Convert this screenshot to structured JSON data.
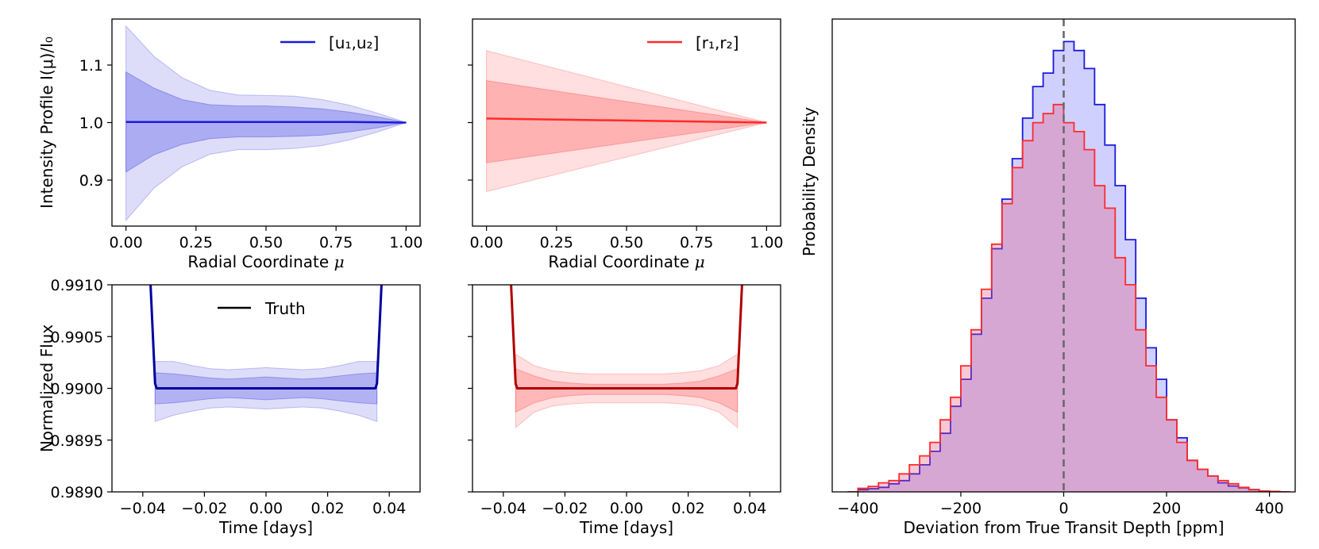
{
  "chart_data": [
    {
      "id": "p1",
      "type": "line",
      "xlabel_prefix": "Radial Coordinate ",
      "xlabel_symbol": "μ",
      "ylabel": "Intensity Profile I(μ)/I₀",
      "xlim": [
        -0.05,
        1.05
      ],
      "ylim": [
        0.82,
        1.18
      ],
      "xticks": [
        0,
        0.25,
        0.5,
        0.75,
        1.0
      ],
      "xtick_labels": [
        "0.00",
        "0.25",
        "0.50",
        "0.75",
        "1.00"
      ],
      "yticks": [
        0.9,
        1.0,
        1.1
      ],
      "ytick_labels": [
        "0.9",
        "1.0",
        "1.1"
      ],
      "legend": "[u₁,u₂]",
      "color": "#1a1adb",
      "x": [
        0,
        0.1,
        0.2,
        0.3,
        0.4,
        0.5,
        0.6,
        0.7,
        0.8,
        0.9,
        1.0
      ],
      "median": [
        1.001,
        1.001,
        1.001,
        1.001,
        1.001,
        1.001,
        1.001,
        1.001,
        1.001,
        1.0005,
        1.0
      ],
      "band1_hi": [
        1.088,
        1.06,
        1.04,
        1.031,
        1.029,
        1.029,
        1.027,
        1.024,
        1.018,
        1.01,
        1.0
      ],
      "band1_lo": [
        0.914,
        0.944,
        0.962,
        0.972,
        0.975,
        0.975,
        0.976,
        0.978,
        0.984,
        0.991,
        1.0
      ],
      "band2_hi": [
        1.168,
        1.115,
        1.078,
        1.056,
        1.048,
        1.047,
        1.046,
        1.04,
        1.03,
        1.016,
        1.0
      ],
      "band2_lo": [
        0.83,
        0.886,
        0.923,
        0.945,
        0.953,
        0.953,
        0.955,
        0.96,
        0.97,
        0.984,
        1.0
      ]
    },
    {
      "id": "p2",
      "type": "line",
      "xlabel_prefix": "Radial Coordinate ",
      "xlabel_symbol": "μ",
      "ylabel": "",
      "xlim": [
        -0.05,
        1.05
      ],
      "ylim": [
        0.82,
        1.18
      ],
      "xticks": [
        0,
        0.25,
        0.5,
        0.75,
        1.0
      ],
      "xtick_labels": [
        "0.00",
        "0.25",
        "0.50",
        "0.75",
        "1.00"
      ],
      "yticks": [
        0.9,
        1.0,
        1.1
      ],
      "ytick_labels": [
        "",
        "",
        ""
      ],
      "legend": "[r₁,r₂]",
      "color": "#ff2a2a",
      "x": [
        0,
        1.0
      ],
      "median": [
        1.007,
        1.0
      ],
      "band1_hi": [
        1.073,
        1.0
      ],
      "band1_lo": [
        0.93,
        1.0
      ],
      "band2_hi": [
        1.125,
        1.0
      ],
      "band2_lo": [
        0.88,
        1.0
      ]
    },
    {
      "id": "p3",
      "type": "line",
      "xlabel": "Time [days]",
      "ylabel": "Normalized Flux",
      "xlim": [
        -0.05,
        0.05
      ],
      "ylim": [
        0.989,
        0.991
      ],
      "xticks": [
        -0.04,
        -0.02,
        0,
        0.02,
        0.04
      ],
      "xtick_labels": [
        "−0.04",
        "−0.02",
        "0.00",
        "0.02",
        "0.04"
      ],
      "yticks": [
        0.989,
        0.9895,
        0.99,
        0.9905,
        0.991
      ],
      "ytick_labels": [
        "0.9890",
        "0.9895",
        "0.9900",
        "0.9905",
        "0.9910"
      ],
      "legend": "Truth",
      "legend_color": "#000000",
      "color": "#1a1adb",
      "truth_color": "#0000a0",
      "x": [
        -0.036,
        -0.03,
        -0.024,
        -0.018,
        -0.012,
        -0.006,
        0.0,
        0.006,
        0.012,
        0.018,
        0.024,
        0.03,
        0.036
      ],
      "band1_hi": [
        0.99015,
        0.99014,
        0.99012,
        0.9901,
        0.99009,
        0.9901,
        0.99011,
        0.9901,
        0.99009,
        0.9901,
        0.99012,
        0.99014,
        0.99015
      ],
      "band1_lo": [
        0.98985,
        0.98986,
        0.98988,
        0.9899,
        0.98991,
        0.9899,
        0.98989,
        0.9899,
        0.98991,
        0.9899,
        0.98988,
        0.98986,
        0.98985
      ],
      "band2_hi": [
        0.99026,
        0.99026,
        0.99022,
        0.99019,
        0.99018,
        0.99019,
        0.9902,
        0.99019,
        0.99018,
        0.99019,
        0.99022,
        0.99026,
        0.99026
      ],
      "band2_lo": [
        0.98968,
        0.98974,
        0.98978,
        0.98981,
        0.98982,
        0.98981,
        0.9898,
        0.98981,
        0.98982,
        0.98981,
        0.98978,
        0.98974,
        0.98968
      ],
      "edge_x": [
        -0.0375,
        -0.0355
      ],
      "flat_flux": 0.99
    },
    {
      "id": "p4",
      "type": "line",
      "xlabel": "Time [days]",
      "ylabel": "",
      "xlim": [
        -0.05,
        0.05
      ],
      "ylim": [
        0.989,
        0.991
      ],
      "xticks": [
        -0.04,
        -0.02,
        0,
        0.02,
        0.04
      ],
      "xtick_labels": [
        "−0.04",
        "−0.02",
        "0.00",
        "0.02",
        "0.04"
      ],
      "yticks": [
        0.989,
        0.9895,
        0.99,
        0.9905,
        0.991
      ],
      "ytick_labels": [
        "",
        "",
        "",
        "",
        ""
      ],
      "color": "#ff2a2a",
      "truth_color": "#b00000",
      "x": [
        -0.036,
        -0.03,
        -0.024,
        -0.018,
        -0.012,
        -0.006,
        0.0,
        0.006,
        0.012,
        0.018,
        0.024,
        0.03,
        0.036
      ],
      "band1_hi": [
        0.99019,
        0.99012,
        0.99007,
        0.99005,
        0.99004,
        0.99004,
        0.99004,
        0.99004,
        0.99004,
        0.99005,
        0.99007,
        0.99012,
        0.99019
      ],
      "band1_lo": [
        0.98977,
        0.98986,
        0.98991,
        0.98993,
        0.98994,
        0.98994,
        0.98994,
        0.98994,
        0.98994,
        0.98993,
        0.98991,
        0.98986,
        0.98977
      ],
      "band2_hi": [
        0.99033,
        0.99022,
        0.99017,
        0.99015,
        0.99014,
        0.99014,
        0.99014,
        0.99014,
        0.99014,
        0.99015,
        0.99017,
        0.99022,
        0.99033
      ],
      "band2_lo": [
        0.98962,
        0.98977,
        0.98983,
        0.98985,
        0.98986,
        0.98986,
        0.98986,
        0.98986,
        0.98986,
        0.98985,
        0.98983,
        0.98977,
        0.98962
      ],
      "edge_x": [
        -0.0375,
        -0.0355
      ],
      "flat_flux": 0.99
    },
    {
      "id": "p5",
      "type": "histogram",
      "xlabel": "Deviation from True Transit Depth [ppm]",
      "ylabel": "Probability Density",
      "xlim": [
        -450,
        450
      ],
      "ylim": [
        0,
        1.05
      ],
      "xticks": [
        -400,
        -200,
        0,
        200,
        400
      ],
      "xtick_labels": [
        "−400",
        "−200",
        "0",
        "200",
        "400"
      ],
      "vline_x": 0,
      "bins": {
        "start": -420,
        "width": 20
      },
      "series": [
        {
          "name": "[u₁,u₂]",
          "color": "#1a1adb",
          "fill": "rgba(120,120,255,0.35)",
          "values": [
            0,
            0.005,
            0.007,
            0.01,
            0.018,
            0.025,
            0.04,
            0.06,
            0.09,
            0.13,
            0.19,
            0.25,
            0.35,
            0.43,
            0.54,
            0.65,
            0.74,
            0.83,
            0.9,
            0.93,
            0.98,
            1.0,
            0.98,
            0.94,
            0.86,
            0.77,
            0.68,
            0.56,
            0.43,
            0.32,
            0.25,
            0.16,
            0.12,
            0.07,
            0.05,
            0.035,
            0.02,
            0.013,
            0.009,
            0.005,
            0.002,
            0.001,
            0
          ]
        },
        {
          "name": "[r₁,r₂]",
          "color": "#ff2a2a",
          "fill": "rgba(230,80,120,0.32)",
          "values": [
            0,
            0.008,
            0.012,
            0.02,
            0.025,
            0.04,
            0.06,
            0.08,
            0.11,
            0.16,
            0.21,
            0.28,
            0.36,
            0.45,
            0.55,
            0.64,
            0.72,
            0.78,
            0.82,
            0.84,
            0.86,
            0.82,
            0.8,
            0.76,
            0.68,
            0.63,
            0.52,
            0.46,
            0.36,
            0.28,
            0.21,
            0.16,
            0.11,
            0.07,
            0.05,
            0.035,
            0.025,
            0.018,
            0.01,
            0.005,
            0.002,
            0.001,
            0
          ]
        }
      ]
    }
  ]
}
